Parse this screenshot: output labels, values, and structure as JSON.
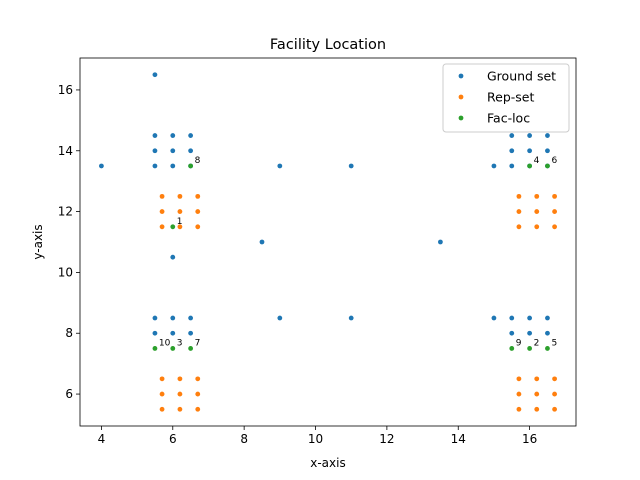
{
  "chart_data": {
    "type": "scatter",
    "title": "Facility Location",
    "xlabel": "x-axis",
    "ylabel": "y-axis",
    "xlim": [
      3.4,
      17.3
    ],
    "ylim": [
      4.95,
      17.05
    ],
    "xticks": [
      4,
      6,
      8,
      10,
      12,
      14,
      16
    ],
    "yticks": [
      6,
      8,
      10,
      12,
      14,
      16
    ],
    "grid": false,
    "legend_position": "top-right",
    "series": [
      {
        "name": "Ground set",
        "color": "#1f77b4",
        "points": [
          [
            5.5,
            16.5
          ],
          [
            4,
            13.5
          ],
          [
            5.5,
            14.5
          ],
          [
            6,
            14.5
          ],
          [
            6.5,
            14.5
          ],
          [
            5.5,
            14
          ],
          [
            6,
            14
          ],
          [
            6.5,
            14
          ],
          [
            5.5,
            13.5
          ],
          [
            6,
            13.5
          ],
          [
            6.5,
            13.5
          ],
          [
            9,
            13.5
          ],
          [
            11,
            13.5
          ],
          [
            15,
            13.5
          ],
          [
            15.5,
            14.5
          ],
          [
            16,
            14.5
          ],
          [
            16.5,
            14.5
          ],
          [
            15.5,
            14
          ],
          [
            16,
            14
          ],
          [
            16.5,
            14
          ],
          [
            15.5,
            13.5
          ],
          [
            16,
            13.5
          ],
          [
            16.5,
            13.5
          ],
          [
            8.5,
            11
          ],
          [
            13.5,
            11
          ],
          [
            6,
            10.5
          ],
          [
            5.5,
            8.5
          ],
          [
            6,
            8.5
          ],
          [
            6.5,
            8.5
          ],
          [
            5.5,
            8
          ],
          [
            6,
            8
          ],
          [
            6.5,
            8
          ],
          [
            9,
            8.5
          ],
          [
            11,
            8.5
          ],
          [
            15,
            8.5
          ],
          [
            15.5,
            8.5
          ],
          [
            16,
            8.5
          ],
          [
            16.5,
            8.5
          ],
          [
            15.5,
            8
          ],
          [
            16,
            8
          ],
          [
            16.5,
            8
          ]
        ]
      },
      {
        "name": "Rep-set",
        "color": "#ff7f0e",
        "points": [
          [
            5.7,
            12.5
          ],
          [
            6.2,
            12.5
          ],
          [
            6.7,
            12.5
          ],
          [
            5.7,
            12
          ],
          [
            6.2,
            12
          ],
          [
            6.7,
            12
          ],
          [
            5.7,
            11.5
          ],
          [
            6.2,
            11.5
          ],
          [
            6.7,
            11.5
          ],
          [
            15.7,
            12.5
          ],
          [
            16.2,
            12.5
          ],
          [
            16.7,
            12.5
          ],
          [
            15.7,
            12
          ],
          [
            16.2,
            12
          ],
          [
            16.7,
            12
          ],
          [
            15.7,
            11.5
          ],
          [
            16.2,
            11.5
          ],
          [
            16.7,
            11.5
          ],
          [
            5.7,
            6.5
          ],
          [
            6.2,
            6.5
          ],
          [
            6.7,
            6.5
          ],
          [
            5.7,
            6
          ],
          [
            6.2,
            6
          ],
          [
            6.7,
            6
          ],
          [
            5.7,
            5.5
          ],
          [
            6.2,
            5.5
          ],
          [
            6.7,
            5.5
          ],
          [
            15.7,
            6.5
          ],
          [
            16.2,
            6.5
          ],
          [
            16.7,
            6.5
          ],
          [
            15.7,
            6
          ],
          [
            16.2,
            6
          ],
          [
            16.7,
            6
          ],
          [
            15.7,
            5.5
          ],
          [
            16.2,
            5.5
          ],
          [
            16.7,
            5.5
          ]
        ]
      },
      {
        "name": "Fac-loc",
        "color": "#2ca02c",
        "points": [
          [
            6,
            11.5
          ],
          [
            16,
            7.5
          ],
          [
            6,
            7.5
          ],
          [
            16,
            13.5
          ],
          [
            16.5,
            7.5
          ],
          [
            16.5,
            13.5
          ],
          [
            6.5,
            7.5
          ],
          [
            6.5,
            13.5
          ],
          [
            15.5,
            7.5
          ],
          [
            5.5,
            7.5
          ]
        ]
      }
    ],
    "annotations": [
      {
        "text": "1",
        "x": 6,
        "y": 11.5
      },
      {
        "text": "2",
        "x": 16,
        "y": 7.5
      },
      {
        "text": "3",
        "x": 6,
        "y": 7.5
      },
      {
        "text": "4",
        "x": 16,
        "y": 13.5
      },
      {
        "text": "5",
        "x": 16.5,
        "y": 7.5
      },
      {
        "text": "6",
        "x": 16.5,
        "y": 13.5
      },
      {
        "text": "7",
        "x": 6.5,
        "y": 7.5
      },
      {
        "text": "8",
        "x": 6.5,
        "y": 13.5
      },
      {
        "text": "9",
        "x": 15.5,
        "y": 7.5
      },
      {
        "text": "10",
        "x": 5.5,
        "y": 7.5
      }
    ]
  }
}
